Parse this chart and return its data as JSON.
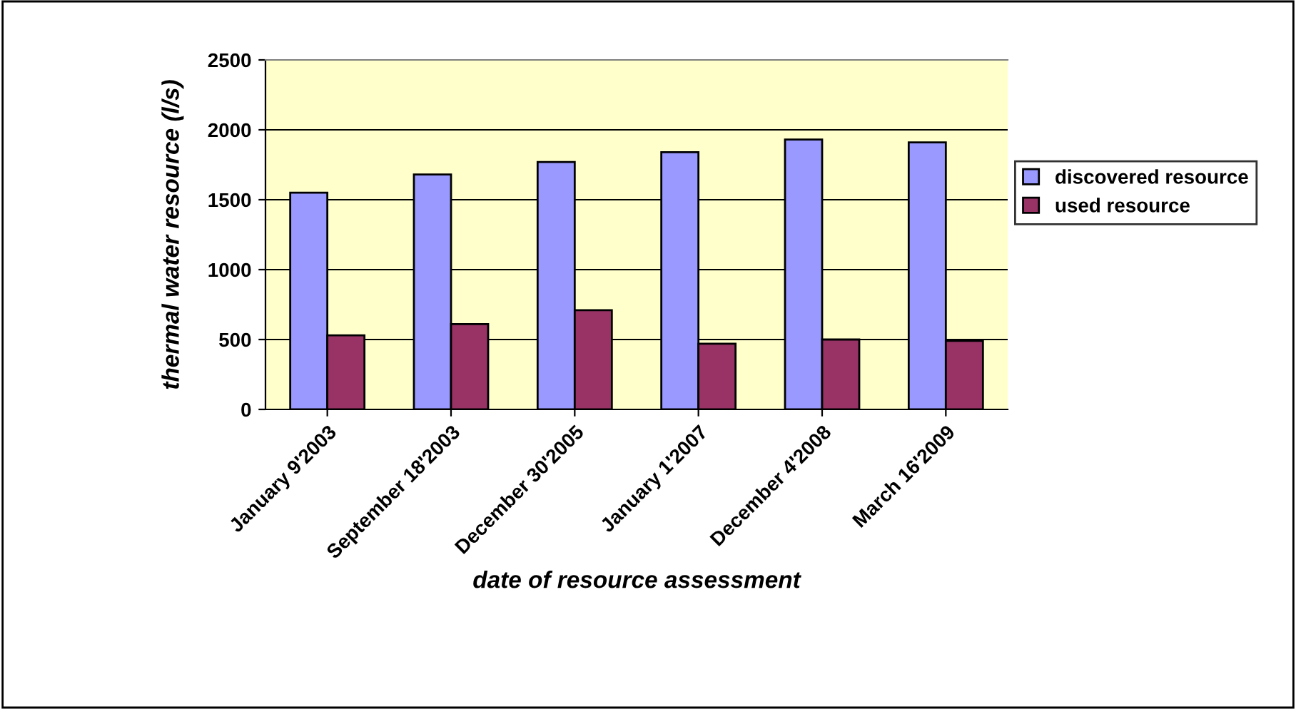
{
  "chart_data": {
    "type": "bar",
    "xlabel": "date of resource assessment",
    "ylabel": "thermal water resource (l/s)",
    "categories": [
      "January 9'2003",
      "September 18'2003",
      "December 30'2005",
      "January 1'2007",
      "December 4'2008",
      "March 16'2009"
    ],
    "series": [
      {
        "name": "discovered resource",
        "color": "#9999ff",
        "values": [
          1550,
          1680,
          1770,
          1840,
          1930,
          1910
        ]
      },
      {
        "name": "used resource",
        "color": "#993366",
        "values": [
          530,
          610,
          710,
          470,
          500,
          490
        ]
      }
    ],
    "ylim": [
      0,
      2500
    ],
    "yticks": [
      0,
      500,
      1000,
      1500,
      2000,
      2500
    ],
    "grid": "y",
    "legend": "right"
  }
}
